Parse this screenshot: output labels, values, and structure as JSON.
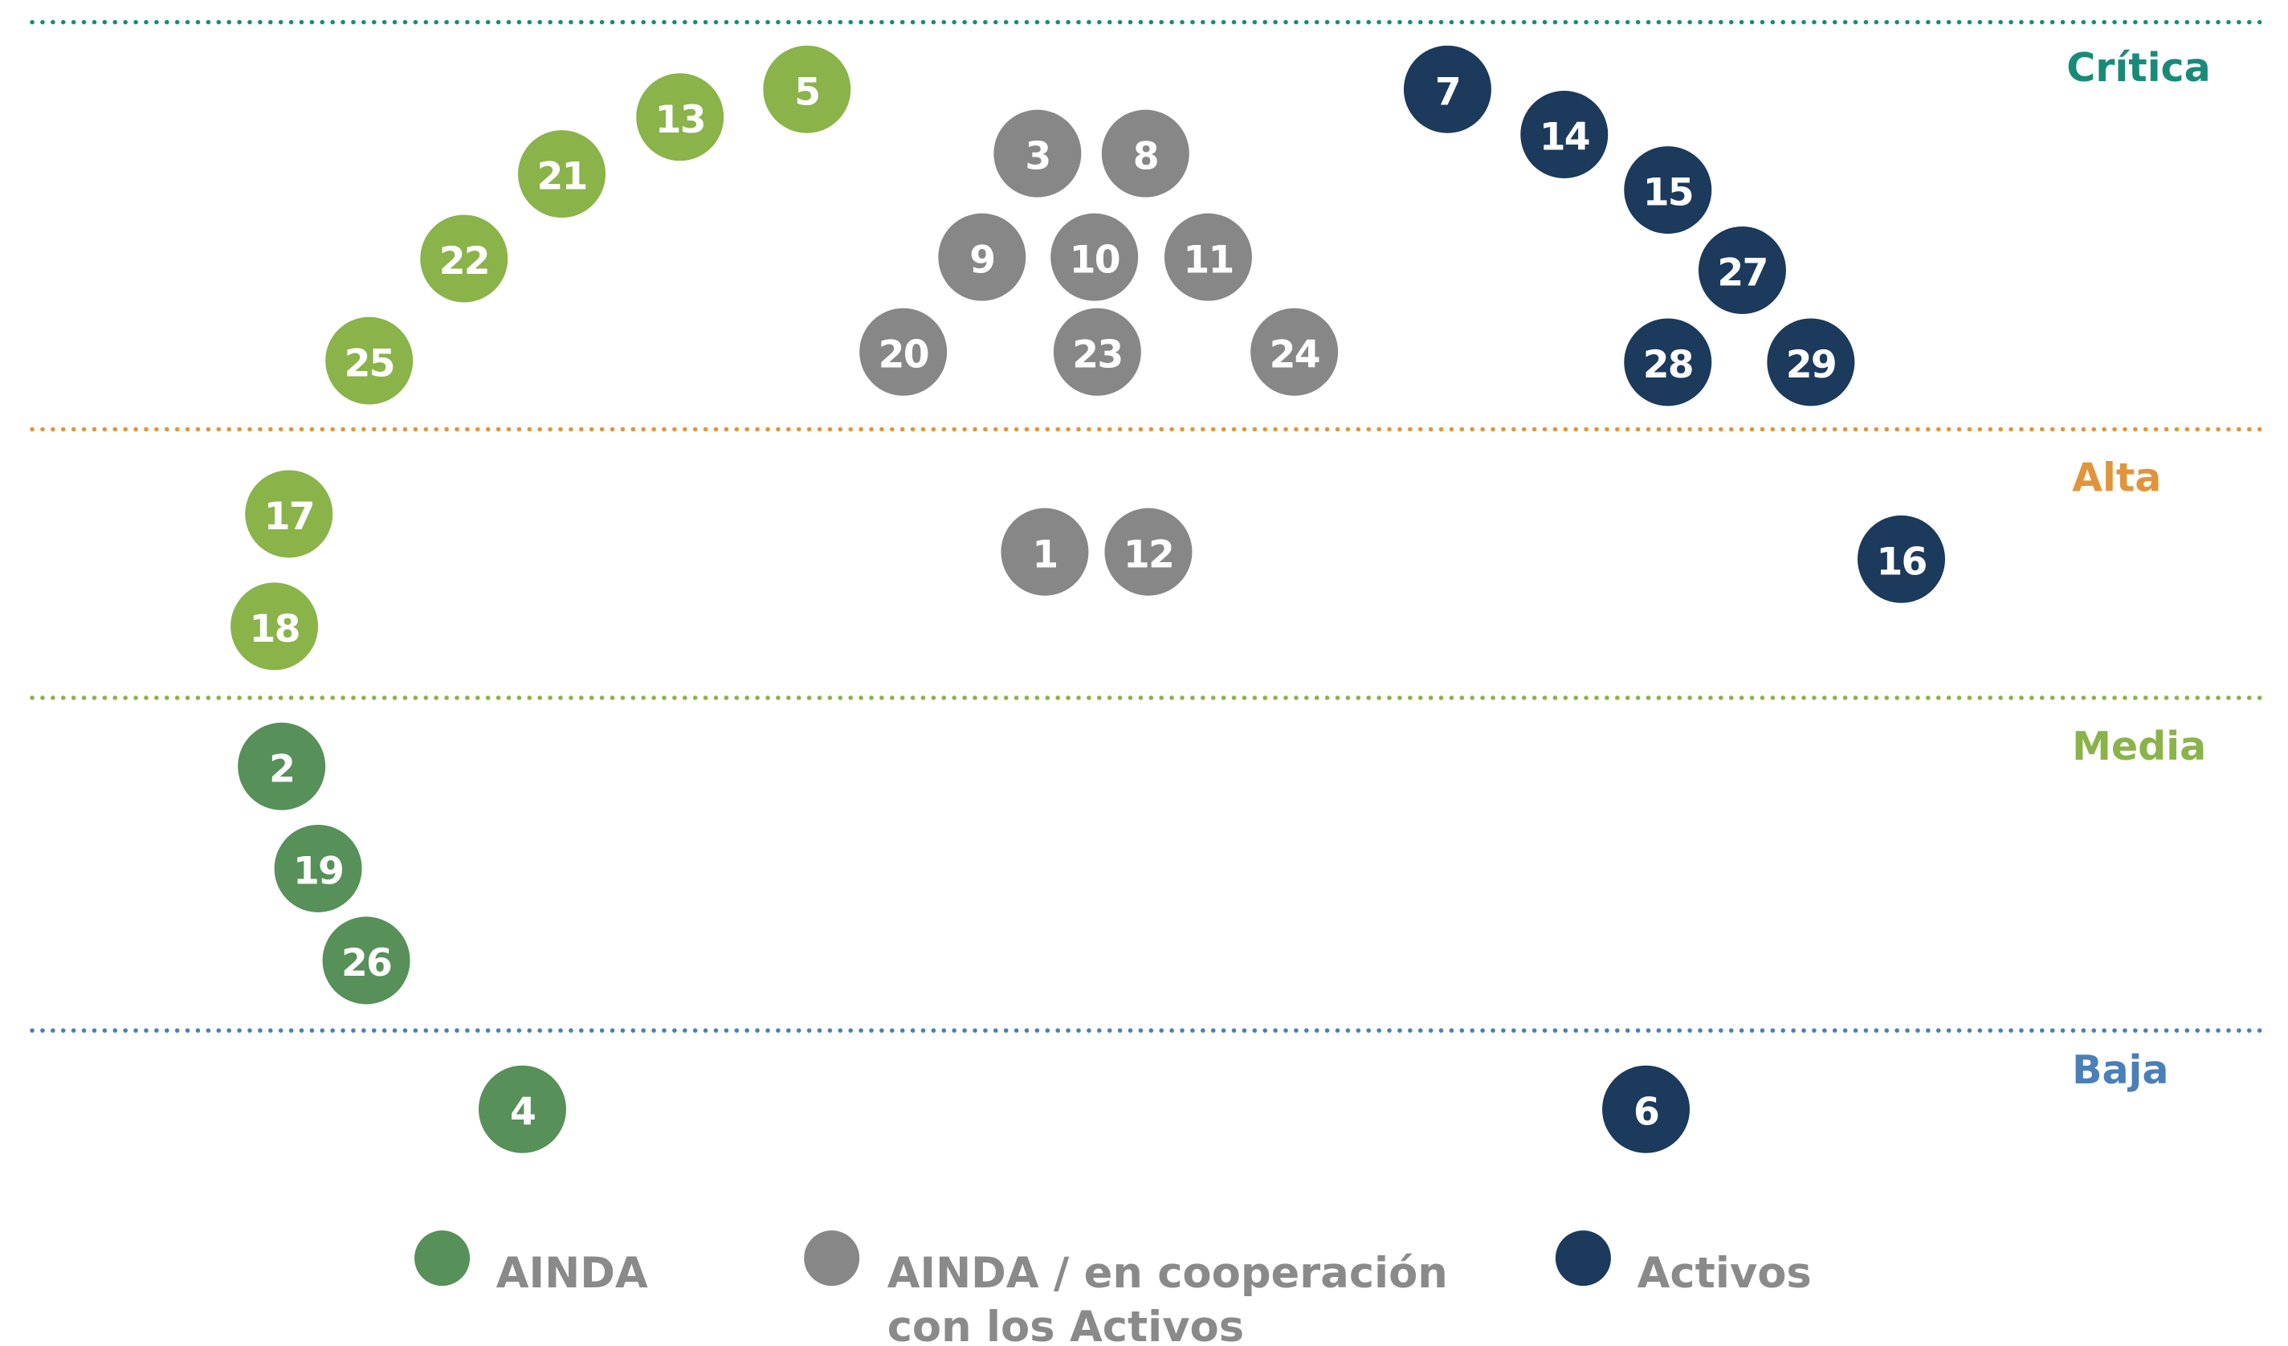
{
  "bands": [
    {
      "label": "Crítica",
      "color": "#1a8a78"
    },
    {
      "label": "Alta",
      "color": "#e0953c"
    },
    {
      "label": "Media",
      "color": "#8ab34a"
    },
    {
      "label": "Baja",
      "color": "#4a7fb8"
    }
  ],
  "groups": {
    "light": {
      "color": "#8ab34a"
    },
    "dark": {
      "color": "#579058"
    },
    "gray": {
      "color": "#878787"
    },
    "navy": {
      "color": "#1b3a5c"
    }
  },
  "legend": [
    {
      "lines": [
        "AINDA"
      ],
      "color": "#579058"
    },
    {
      "lines": [
        "AINDA / en cooperación",
        "con los Activos"
      ],
      "color": "#878787"
    },
    {
      "lines": [
        "Activos"
      ],
      "color": "#1b3a5c"
    }
  ],
  "nodes": [
    {
      "label": "5",
      "group": "light"
    },
    {
      "label": "13",
      "group": "light"
    },
    {
      "label": "21",
      "group": "light"
    },
    {
      "label": "22",
      "group": "light"
    },
    {
      "label": "25",
      "group": "light"
    },
    {
      "label": "17",
      "group": "light"
    },
    {
      "label": "18",
      "group": "light"
    },
    {
      "label": "3",
      "group": "gray"
    },
    {
      "label": "8",
      "group": "gray"
    },
    {
      "label": "9",
      "group": "gray"
    },
    {
      "label": "10",
      "group": "gray"
    },
    {
      "label": "11",
      "group": "gray"
    },
    {
      "label": "20",
      "group": "gray"
    },
    {
      "label": "23",
      "group": "gray"
    },
    {
      "label": "24",
      "group": "gray"
    },
    {
      "label": "1",
      "group": "gray"
    },
    {
      "label": "12",
      "group": "gray"
    },
    {
      "label": "7",
      "group": "navy"
    },
    {
      "label": "14",
      "group": "navy"
    },
    {
      "label": "15",
      "group": "navy"
    },
    {
      "label": "27",
      "group": "navy"
    },
    {
      "label": "28",
      "group": "navy"
    },
    {
      "label": "29",
      "group": "navy"
    },
    {
      "label": "16",
      "group": "navy"
    },
    {
      "label": "6",
      "group": "navy"
    },
    {
      "label": "2",
      "group": "dark"
    },
    {
      "label": "19",
      "group": "dark"
    },
    {
      "label": "26",
      "group": "dark"
    },
    {
      "label": "4",
      "group": "dark"
    }
  ]
}
